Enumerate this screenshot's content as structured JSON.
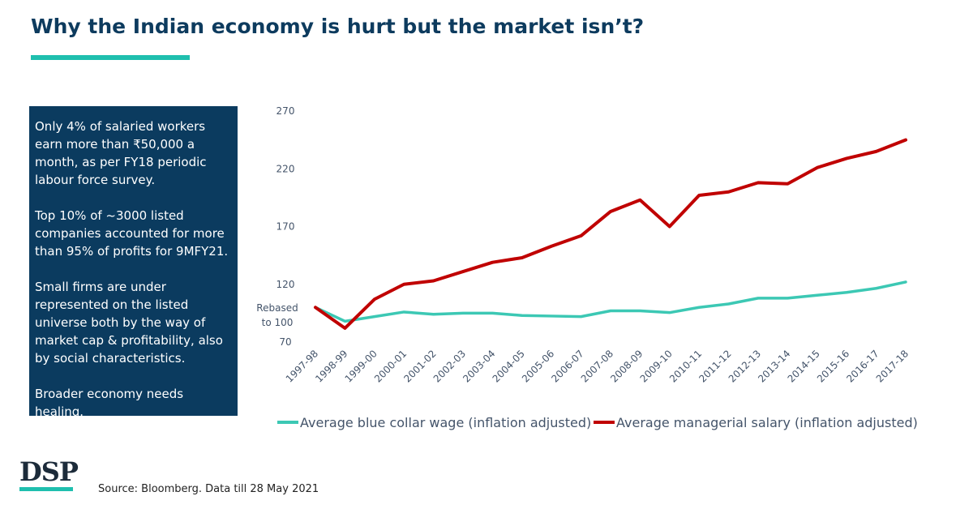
{
  "colors": {
    "title": "#0d3b5e",
    "accent": "#1fbfae",
    "box_bg": "#0b3b5f",
    "blue_collar": "#3cc8b4",
    "managerial": "#c00000",
    "tick_text": "#44546a"
  },
  "header": {
    "title": "Why the Indian economy is hurt but the market isn’t?"
  },
  "info_box": {
    "paragraphs": [
      "Only 4% of salaried workers earn more than ₹50,000 a month, as per FY18 periodic labour force survey.",
      "Top 10% of ~3000 listed companies accounted for more than 95% of profits for 9MFY21.",
      "Small firms are under represented on the listed universe both by the way of market cap & profitability, also by social characteristics.",
      "Broader economy needs healing."
    ]
  },
  "chart_data": {
    "type": "line",
    "categories": [
      "1997-98",
      "1998-99",
      "1999-00",
      "2000-01",
      "2001-02",
      "2002-03",
      "2003-04",
      "2004-05",
      "2005-06",
      "2006-07",
      "2007-08",
      "2008-09",
      "2009-10",
      "2010-11",
      "2011-12",
      "2012-13",
      "2013-14",
      "2014-15",
      "2015-16",
      "2016-17",
      "2017-18"
    ],
    "series": [
      {
        "name": "Average blue collar wage (inflation adjusted)",
        "color": "#3cc8b4",
        "values": [
          100,
          88,
          92,
          96,
          94,
          95,
          95,
          93,
          92.5,
          92,
          97,
          97,
          95.5,
          100,
          103,
          108,
          108,
          110.5,
          113,
          116.5,
          122
        ]
      },
      {
        "name": "Average managerial salary (inflation adjusted)",
        "color": "#c00000",
        "values": [
          100,
          82,
          107,
          120,
          123,
          131,
          139,
          143,
          153,
          162,
          183,
          193,
          170,
          197,
          200,
          208,
          207,
          221,
          229,
          235,
          245
        ]
      }
    ],
    "yticks": [
      70,
      120,
      170,
      220,
      270
    ],
    "ylim": [
      70,
      270
    ],
    "annotation": [
      "Rebased",
      "to 100"
    ],
    "legend": "bottom"
  },
  "footer": {
    "logo": "DSP",
    "source": "Source: Bloomberg. Data till 28 May 2021"
  }
}
